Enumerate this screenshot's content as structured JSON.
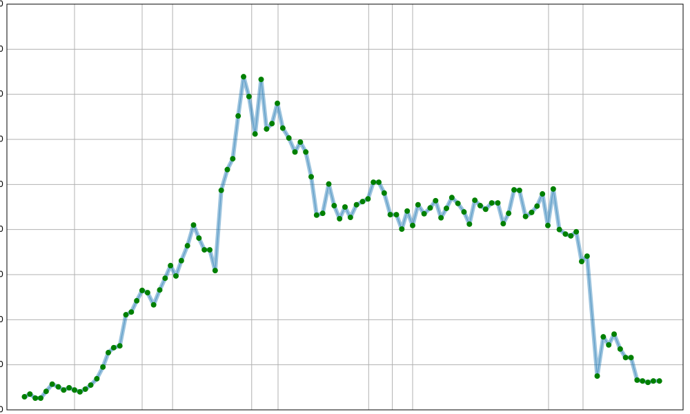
{
  "chart_data": {
    "type": "line",
    "x": [
      2.6,
      3.4,
      4.2,
      5.0,
      5.8,
      6.7,
      7.6,
      8.4,
      9.2,
      10.0,
      10.8,
      11.6,
      12.4,
      13.3,
      14.2,
      15.0,
      15.8,
      16.7,
      17.6,
      18.4,
      19.2,
      20.0,
      20.8,
      21.7,
      22.6,
      23.4,
      24.2,
      25.0,
      25.8,
      26.7,
      27.6,
      28.4,
      29.2,
      30.0,
      30.8,
      31.7,
      32.6,
      33.4,
      34.2,
      35.0,
      35.8,
      36.7,
      37.6,
      38.4,
      39.2,
      40.0,
      40.8,
      41.7,
      42.6,
      43.4,
      44.2,
      45.0,
      45.8,
      46.7,
      47.6,
      48.4,
      49.2,
      50.0,
      50.8,
      51.7,
      52.6,
      53.4,
      54.2,
      55.0,
      55.8,
      56.7,
      57.6,
      58.4,
      59.2,
      60.0,
      60.8,
      61.7,
      62.6,
      63.4,
      64.2,
      65.0,
      65.8,
      66.7,
      67.6,
      68.4,
      69.2,
      70.0,
      70.8,
      71.7,
      72.6,
      73.4,
      74.2,
      75.0,
      75.8,
      76.7,
      77.6,
      78.4,
      79.2,
      80.0,
      80.8,
      81.7,
      82.6,
      83.4,
      84.2,
      85.0,
      85.8,
      87.3,
      88.2,
      89.0,
      89.8,
      90.7,
      91.5,
      92.3,
      93.2,
      94.0,
      94.8,
      95.6,
      96.5
    ],
    "series": [
      {
        "color": "#1f77b4",
        "marker_color": "#008000",
        "values": [
          2.9,
          3.5,
          2.6,
          2.6,
          4.1,
          5.7,
          5.1,
          4.4,
          4.9,
          4.4,
          4.0,
          4.6,
          5.5,
          6.9,
          9.5,
          12.7,
          13.8,
          14.2,
          21.1,
          21.7,
          24.2,
          26.5,
          26.0,
          23.3,
          26.6,
          29.2,
          32.0,
          29.7,
          33.1,
          36.4,
          41.0,
          38.1,
          35.5,
          35.5,
          30.9,
          48.7,
          53.3,
          55.7,
          65.2,
          73.9,
          69.5,
          61.2,
          73.3,
          62.3,
          63.5,
          68.0,
          62.5,
          60.3,
          57.2,
          59.4,
          57.2,
          51.7,
          43.2,
          43.6,
          50.1,
          45.3,
          42.4,
          45.0,
          42.7,
          45.5,
          46.2,
          46.8,
          50.5,
          50.5,
          48.1,
          43.3,
          43.3,
          40.1,
          44.1,
          40.9,
          45.5,
          43.5,
          44.8,
          46.4,
          42.6,
          44.7,
          47.1,
          45.8,
          43.9,
          41.2,
          46.5,
          45.3,
          44.5,
          45.9,
          45.9,
          41.3,
          43.6,
          48.8,
          48.7,
          42.9,
          43.8,
          45.2,
          47.9,
          40.9,
          49.0,
          40.0,
          39.0,
          38.6,
          39.5,
          32.9,
          34.1,
          7.5,
          16.2,
          14.4,
          16.8,
          13.5,
          11.6,
          11.6,
          6.6,
          6.4,
          6.1,
          6.4,
          6.4
        ]
      }
    ],
    "xlim": [
      0,
      100
    ],
    "xticks": [
      10,
      20,
      24.5,
      36.2,
      40.1,
      53.5,
      57,
      60,
      80.1,
      85.2
    ],
    "ylim": [
      0,
      90
    ],
    "yticks": [
      0,
      10,
      20,
      30,
      40,
      50,
      60,
      70,
      80,
      90
    ],
    "grid": true
  }
}
